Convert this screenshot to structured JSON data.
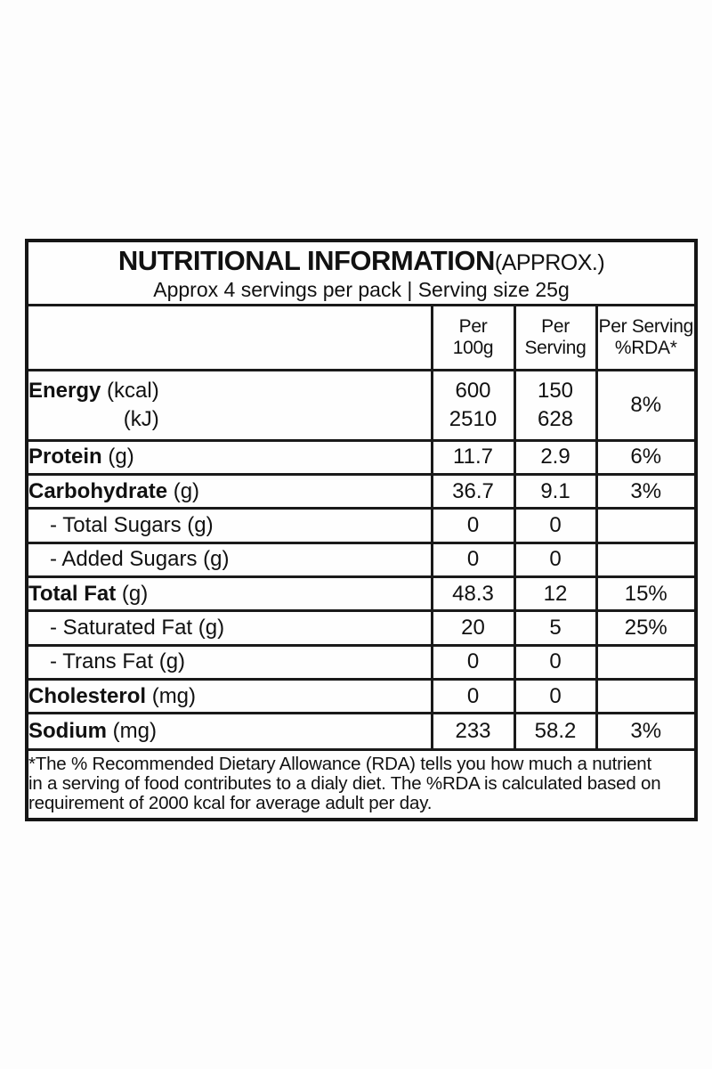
{
  "label": {
    "title": "NUTRITIONAL INFORMATION",
    "title_suffix": "(APPROX.)",
    "subtitle": "Approx 4 servings per pack | Serving size 25g",
    "columns": {
      "per_100g": {
        "line1": "Per",
        "line2": "100g"
      },
      "per_serving": {
        "line1": "Per",
        "line2": "Serving"
      },
      "rda": {
        "line1": "Per Serving",
        "line2": "%RDA*"
      }
    },
    "rows": [
      {
        "label_bold": "Energy",
        "label_rest": " (kcal)",
        "label_line2": "(kJ)",
        "per_100g": "600",
        "per_100g_line2": "2510",
        "per_serving": "150",
        "per_serving_line2": "628",
        "rda": "8%"
      },
      {
        "label_bold": "Protein",
        "label_rest": " (g)",
        "per_100g": "11.7",
        "per_serving": "2.9",
        "rda": "6%"
      },
      {
        "label_bold": "Carbohydrate",
        "label_rest": " (g)",
        "per_100g": "36.7",
        "per_serving": "9.1",
        "rda": "3%"
      },
      {
        "label_bold": "",
        "label_rest": "- Total Sugars (g)",
        "per_100g": "0",
        "per_serving": "0",
        "rda": ""
      },
      {
        "label_bold": "",
        "label_rest": "- Added Sugars (g)",
        "per_100g": "0",
        "per_serving": "0",
        "rda": ""
      },
      {
        "label_bold": "Total Fat",
        "label_rest": " (g)",
        "per_100g": "48.3",
        "per_serving": "12",
        "rda": "15%"
      },
      {
        "label_bold": "",
        "label_rest": "- Saturated Fat (g)",
        "per_100g": "20",
        "per_serving": "5",
        "rda": "25%"
      },
      {
        "label_bold": "",
        "label_rest": "- Trans Fat (g)",
        "per_100g": "0",
        "per_serving": "0",
        "rda": ""
      },
      {
        "label_bold": "Cholesterol",
        "label_rest": " (mg)",
        "per_100g": "0",
        "per_serving": "0",
        "rda": ""
      },
      {
        "label_bold": "Sodium",
        "label_rest": " (mg)",
        "per_100g": "233",
        "per_serving": "58.2",
        "rda": "3%"
      }
    ],
    "footnote_lines": [
      "*The % Recommended Dietary Allowance (RDA) tells you how much a nutrient",
      "in a serving of food contributes to a dialy diet. The %RDA is calculated based on",
      "requirement of 2000 kcal for average adult per day."
    ]
  },
  "colors": {
    "text": "#111111",
    "border": "#1a1a1a",
    "background": "#fdfdfd"
  }
}
